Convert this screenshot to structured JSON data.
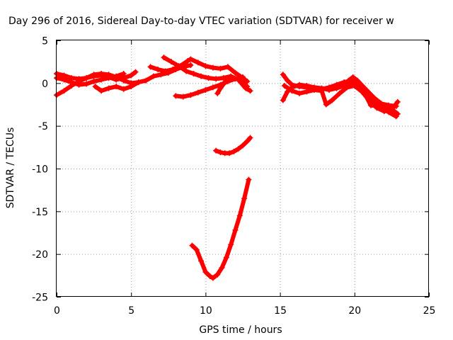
{
  "chart_data": {
    "type": "scatter",
    "title": "Day 296 of 2016, Sidereal Day-to-day VTEC variation (SDTVAR) for receiver w",
    "xlabel": "GPS time / hours",
    "ylabel": "SDTVAR / TECUs",
    "xlim": [
      0,
      25
    ],
    "ylim": [
      -25,
      5
    ],
    "x_ticks": [
      0,
      5,
      10,
      15,
      20,
      25
    ],
    "y_ticks": [
      5,
      0,
      -5,
      -10,
      -15,
      -20,
      -25
    ],
    "grid": true,
    "marker_color": "#ff0000",
    "marker": "plus",
    "series": [
      {
        "points": [
          [
            0.0,
            -1.4
          ],
          [
            0.5,
            -0.9
          ],
          [
            1.0,
            -0.3
          ],
          [
            1.5,
            0.2
          ],
          [
            2.0,
            0.6
          ],
          [
            2.5,
            1.0
          ],
          [
            3.0,
            1.1
          ],
          [
            3.5,
            1.0
          ],
          [
            4.0,
            0.7
          ],
          [
            4.5,
            0.3
          ],
          [
            5.0,
            0.0
          ],
          [
            5.5,
            0.1
          ]
        ]
      },
      {
        "points": [
          [
            0.0,
            1.1
          ],
          [
            0.5,
            0.9
          ],
          [
            1.0,
            0.6
          ],
          [
            1.5,
            0.5
          ],
          [
            2.0,
            0.6
          ],
          [
            2.5,
            0.8
          ],
          [
            3.0,
            0.9
          ],
          [
            3.5,
            0.7
          ],
          [
            4.0,
            0.4
          ],
          [
            4.5,
            0.6
          ],
          [
            5.0,
            0.9
          ],
          [
            5.3,
            1.3
          ]
        ]
      },
      {
        "points": [
          [
            0.0,
            0.6
          ],
          [
            0.5,
            0.4
          ],
          [
            1.0,
            0.1
          ],
          [
            1.5,
            -0.2
          ],
          [
            2.0,
            -0.1
          ],
          [
            2.5,
            0.2
          ],
          [
            3.0,
            0.4
          ],
          [
            3.5,
            0.6
          ],
          [
            4.0,
            0.8
          ],
          [
            4.5,
            1.1
          ]
        ]
      },
      {
        "points": [
          [
            2.6,
            -0.4
          ],
          [
            3.0,
            -0.9
          ],
          [
            3.5,
            -0.6
          ],
          [
            4.0,
            -0.4
          ],
          [
            4.5,
            -0.7
          ],
          [
            5.0,
            -0.4
          ],
          [
            5.5,
            0.1
          ],
          [
            6.0,
            0.3
          ],
          [
            6.5,
            0.8
          ],
          [
            7.0,
            1.0
          ],
          [
            7.5,
            1.2
          ],
          [
            8.0,
            1.6
          ],
          [
            8.5,
            1.9
          ],
          [
            9.0,
            2.1
          ]
        ]
      },
      {
        "points": [
          [
            6.3,
            1.9
          ],
          [
            6.8,
            1.6
          ],
          [
            7.3,
            1.4
          ],
          [
            7.8,
            1.6
          ],
          [
            8.3,
            2.0
          ],
          [
            8.8,
            2.6
          ],
          [
            9.0,
            2.8
          ],
          [
            9.5,
            2.4
          ],
          [
            10.0,
            2.0
          ],
          [
            10.5,
            1.8
          ],
          [
            11.0,
            1.7
          ],
          [
            11.5,
            1.9
          ],
          [
            12.0,
            1.2
          ],
          [
            12.5,
            0.6
          ],
          [
            12.8,
            0.2
          ]
        ]
      },
      {
        "points": [
          [
            7.2,
            3.0
          ],
          [
            7.7,
            2.5
          ],
          [
            8.2,
            2.0
          ],
          [
            8.7,
            1.4
          ],
          [
            9.2,
            1.1
          ],
          [
            9.7,
            0.8
          ],
          [
            10.2,
            0.6
          ],
          [
            10.7,
            0.5
          ],
          [
            11.2,
            0.6
          ],
          [
            11.7,
            0.8
          ],
          [
            12.2,
            0.4
          ],
          [
            12.7,
            -0.6
          ],
          [
            13.0,
            -0.9
          ]
        ]
      },
      {
        "points": [
          [
            8.0,
            -1.5
          ],
          [
            8.5,
            -1.6
          ],
          [
            9.0,
            -1.4
          ],
          [
            9.5,
            -1.1
          ],
          [
            10.0,
            -0.8
          ],
          [
            10.5,
            -0.5
          ],
          [
            11.0,
            -0.2
          ],
          [
            11.5,
            0.2
          ],
          [
            12.0,
            0.5
          ],
          [
            12.5,
            0.7
          ]
        ]
      },
      {
        "points": [
          [
            10.8,
            -1.2
          ],
          [
            11.0,
            -0.6
          ],
          [
            11.3,
            0.1
          ],
          [
            11.8,
            0.6
          ],
          [
            12.3,
            0.4
          ],
          [
            12.8,
            -0.4
          ]
        ]
      },
      {
        "points": [
          [
            10.7,
            -7.9
          ],
          [
            11.0,
            -8.1
          ],
          [
            11.3,
            -8.2
          ],
          [
            11.6,
            -8.2
          ],
          [
            11.9,
            -8.0
          ],
          [
            12.2,
            -7.7
          ],
          [
            12.5,
            -7.3
          ],
          [
            12.8,
            -6.8
          ],
          [
            13.0,
            -6.4
          ]
        ]
      },
      {
        "points": [
          [
            9.1,
            -19.0
          ],
          [
            9.4,
            -19.5
          ],
          [
            9.7,
            -20.8
          ],
          [
            10.0,
            -22.1
          ],
          [
            10.3,
            -22.6
          ],
          [
            10.5,
            -22.8
          ],
          [
            10.8,
            -22.4
          ],
          [
            11.1,
            -21.6
          ],
          [
            11.4,
            -20.4
          ],
          [
            11.7,
            -18.9
          ],
          [
            12.0,
            -17.2
          ],
          [
            12.3,
            -15.5
          ],
          [
            12.6,
            -13.5
          ],
          [
            12.9,
            -11.3
          ]
        ]
      },
      {
        "points": [
          [
            15.2,
            1.0
          ],
          [
            15.5,
            0.3
          ],
          [
            15.8,
            -0.2
          ],
          [
            16.3,
            -0.4
          ],
          [
            16.8,
            -0.5
          ],
          [
            17.3,
            -0.6
          ],
          [
            17.8,
            -0.7
          ],
          [
            18.3,
            -0.5
          ],
          [
            18.8,
            -0.2
          ],
          [
            19.3,
            0.1
          ],
          [
            19.8,
            0.3
          ],
          [
            20.3,
            0.1
          ],
          [
            20.8,
            -0.8
          ],
          [
            21.3,
            -1.7
          ],
          [
            21.8,
            -2.4
          ],
          [
            22.3,
            -2.6
          ],
          [
            22.8,
            -2.7
          ]
        ]
      },
      {
        "points": [
          [
            15.2,
            -2.0
          ],
          [
            15.5,
            -1.0
          ],
          [
            15.8,
            -0.5
          ],
          [
            16.3,
            -0.2
          ],
          [
            16.8,
            -0.3
          ],
          [
            17.3,
            -0.5
          ],
          [
            17.8,
            -0.6
          ],
          [
            18.3,
            -0.8
          ],
          [
            18.8,
            -0.6
          ],
          [
            19.3,
            -0.3
          ],
          [
            19.8,
            0.0
          ],
          [
            20.3,
            -0.5
          ],
          [
            20.8,
            -1.5
          ],
          [
            21.3,
            -2.3
          ],
          [
            21.8,
            -2.8
          ],
          [
            22.3,
            -3.4
          ],
          [
            22.8,
            -3.9
          ]
        ]
      },
      {
        "points": [
          [
            15.3,
            -0.3
          ],
          [
            15.8,
            -0.9
          ],
          [
            16.3,
            -1.2
          ],
          [
            16.8,
            -1.0
          ],
          [
            17.3,
            -0.8
          ],
          [
            17.8,
            -0.9
          ],
          [
            18.1,
            -2.5
          ],
          [
            18.5,
            -2.0
          ],
          [
            19.0,
            -1.2
          ],
          [
            19.5,
            -0.5
          ],
          [
            20.0,
            -0.3
          ],
          [
            20.5,
            -1.0
          ],
          [
            21.0,
            -2.0
          ],
          [
            21.5,
            -2.9
          ],
          [
            22.0,
            -3.3
          ],
          [
            22.5,
            -3.1
          ],
          [
            22.9,
            -2.2
          ]
        ]
      },
      {
        "points": [
          [
            19.6,
            0.3
          ],
          [
            19.9,
            0.7
          ],
          [
            20.2,
            0.3
          ],
          [
            20.5,
            -0.6
          ],
          [
            20.8,
            -1.6
          ],
          [
            21.1,
            -2.6
          ],
          [
            21.6,
            -2.7
          ],
          [
            22.1,
            -2.8
          ],
          [
            22.6,
            -3.2
          ],
          [
            22.9,
            -3.6
          ]
        ]
      }
    ]
  }
}
